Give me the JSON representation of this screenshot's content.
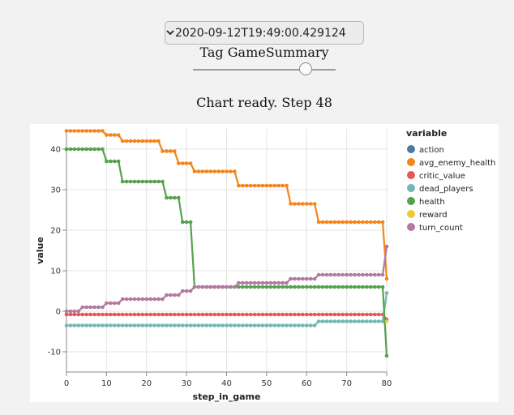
{
  "controls": {
    "run_select_value": "2020-09-12T19:49:00.429124",
    "tag_label": "Tag GameSummary",
    "step_slider_fraction": 0.79,
    "status": "Chart ready. Step 48"
  },
  "chart_data": {
    "type": "line",
    "xlabel": "step_in_game",
    "ylabel": "value",
    "xlim": [
      0,
      80
    ],
    "ylim": [
      -15,
      45
    ],
    "xticks": [
      0,
      10,
      20,
      30,
      40,
      50,
      60,
      70,
      80
    ],
    "yticks": [
      -10,
      0,
      10,
      20,
      30,
      40
    ],
    "grid": true,
    "legend_title": "variable",
    "legend_position": "right",
    "series": [
      {
        "name": "action",
        "color": "#4c78a8",
        "segments": []
      },
      {
        "name": "avg_enemy_health",
        "color": "#f58518",
        "segments": [
          [
            0,
            9,
            44.5
          ],
          [
            10,
            13,
            43.5
          ],
          [
            14,
            23,
            42
          ],
          [
            24,
            27,
            39.5
          ],
          [
            28,
            31,
            36.5
          ],
          [
            32,
            42,
            34.5
          ],
          [
            43,
            55,
            31
          ],
          [
            56,
            62,
            26.5
          ],
          [
            63,
            79,
            22
          ],
          [
            80,
            80,
            8
          ]
        ]
      },
      {
        "name": "critic_value",
        "color": "#e45756",
        "segments": [
          [
            0,
            79,
            -0.8
          ],
          [
            80,
            80,
            -2
          ]
        ]
      },
      {
        "name": "dead_players",
        "color": "#72b7b2",
        "segments": [
          [
            0,
            62,
            -3.5
          ],
          [
            63,
            79,
            -2.5
          ],
          [
            80,
            80,
            4.5
          ]
        ]
      },
      {
        "name": "health",
        "color": "#54a24b",
        "segments": [
          [
            0,
            9,
            40
          ],
          [
            10,
            13,
            37
          ],
          [
            14,
            24,
            32
          ],
          [
            25,
            28,
            28
          ],
          [
            29,
            31,
            22
          ],
          [
            32,
            79,
            6
          ],
          [
            80,
            80,
            -11
          ]
        ]
      },
      {
        "name": "reward",
        "color": "#eeca3b",
        "segments": [
          [
            80,
            80,
            -2.5
          ]
        ]
      },
      {
        "name": "turn_count",
        "color": "#b279a2",
        "segments": [
          [
            0,
            3,
            0
          ],
          [
            4,
            9,
            1
          ],
          [
            10,
            13,
            2
          ],
          [
            14,
            24,
            3
          ],
          [
            25,
            28,
            4
          ],
          [
            29,
            31,
            5
          ],
          [
            32,
            42,
            6
          ],
          [
            43,
            55,
            7
          ],
          [
            56,
            62,
            8
          ],
          [
            63,
            79,
            9
          ],
          [
            80,
            80,
            16
          ]
        ]
      }
    ]
  }
}
